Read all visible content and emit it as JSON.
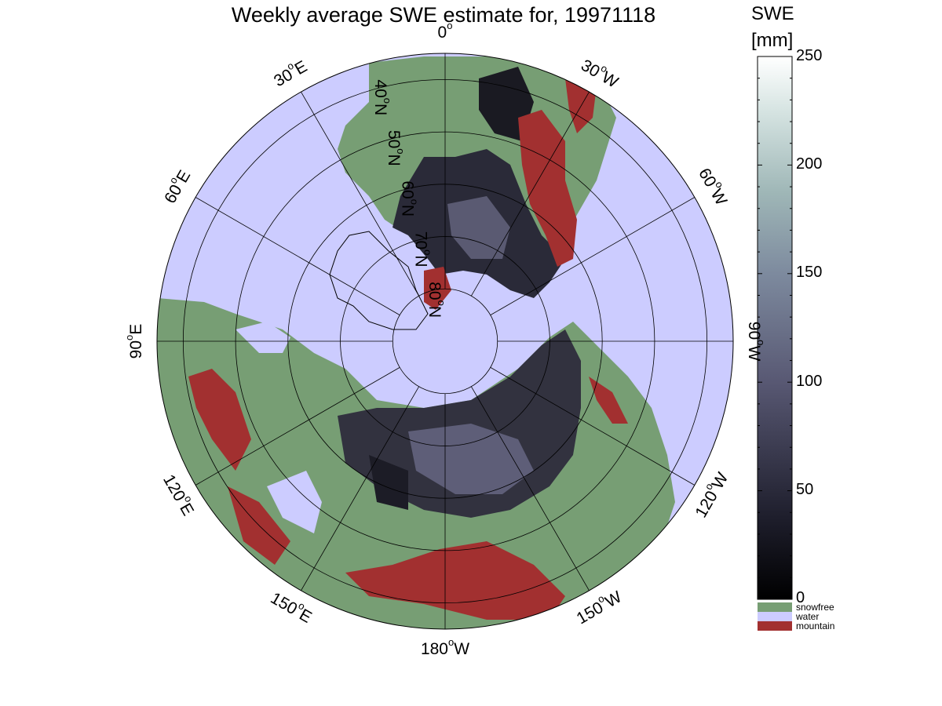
{
  "title": "Weekly average SWE estimate for, 19971118",
  "colorbar": {
    "title_line1": "SWE",
    "title_line2": "[mm]",
    "ticks": [
      "250",
      "200",
      "150",
      "100",
      "50",
      "0"
    ],
    "range": [
      0,
      250
    ]
  },
  "legend": [
    {
      "label": "snowfree",
      "color": "#779e74"
    },
    {
      "label": "water",
      "color": "#ccccff"
    },
    {
      "label": "mountain",
      "color": "#a23030"
    }
  ],
  "map": {
    "projection": "north polar stereographic",
    "colors": {
      "water": "#ccccff",
      "land": "#779e74",
      "mountain": "#a23030",
      "snow_dark": "#1c1c26",
      "snow_mid": "#505064",
      "snow_light": "#7a7a92"
    },
    "longitude_labels": [
      {
        "lon": -90,
        "text": "90",
        "hemi": "W"
      },
      {
        "lon": -120,
        "text": "120",
        "hemi": "W"
      },
      {
        "lon": -60,
        "text": "60",
        "hemi": "W"
      },
      {
        "lon": -150,
        "text": "150",
        "hemi": "W"
      },
      {
        "lon": -30,
        "text": "30",
        "hemi": "W"
      },
      {
        "lon": 0,
        "text": "0",
        "hemi": ""
      },
      {
        "lon": 180,
        "text": "180",
        "hemi": "W"
      },
      {
        "lon": 30,
        "text": "30",
        "hemi": "E"
      },
      {
        "lon": 150,
        "text": "150",
        "hemi": "E"
      },
      {
        "lon": 60,
        "text": "60",
        "hemi": "E"
      },
      {
        "lon": 120,
        "text": "120",
        "hemi": "E"
      },
      {
        "lon": 90,
        "text": "90",
        "hemi": "E"
      }
    ],
    "latitude_circles": [
      80,
      70,
      60,
      50,
      40
    ],
    "latitude_labels": [
      {
        "lat": 80,
        "text": "80",
        "hemi": "N"
      },
      {
        "lat": 70,
        "text": "70",
        "hemi": "N"
      },
      {
        "lat": 60,
        "text": "60",
        "hemi": "N"
      },
      {
        "lat": 50,
        "text": "50",
        "hemi": "N"
      },
      {
        "lat": 40,
        "text": "40",
        "hemi": "N"
      }
    ]
  }
}
